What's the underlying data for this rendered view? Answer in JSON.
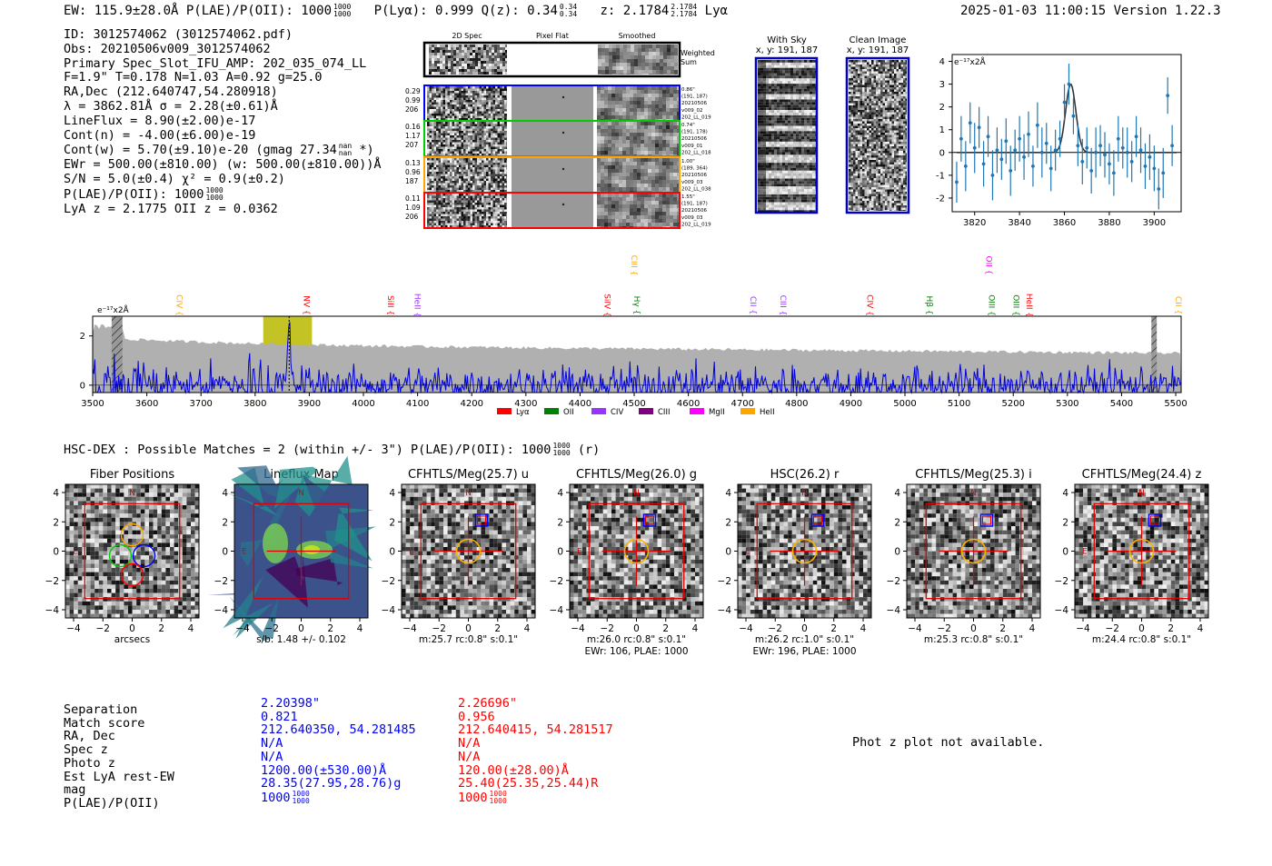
{
  "header": {
    "line": "EW: 115.9±28.0Å  P(LAE)/P(OII): 1000",
    "plae_frac": [
      "1000",
      "1000"
    ],
    "plya": "P(Lyα): 0.999  Q(z): 0.34",
    "qz_frac": [
      "0.34",
      "0.34"
    ],
    "z": "z: 2.1784",
    "z_frac": [
      "2.1784",
      "2.1784"
    ],
    "z_suffix": "Lyα",
    "timestamp": "2025-01-03 11:00:15  Version 1.22.3"
  },
  "info": {
    "id": "ID: 3012574062 (3012574062.pdf)",
    "obs": "Obs: 20210506v009_3012574062",
    "primary": "Primary Spec_Slot_IFU_AMP: 202_035_074_LL",
    "fiber": "F=1.9\"  T=0.178  N=1.03  A=0.92  g=25.0",
    "radec": "RA,Dec (212.640747,54.280918)",
    "lambda": "λ = 3862.81Å  σ = 2.28(±0.61)Å",
    "lineflux": "LineFlux = 8.90(±2.00)e-17",
    "contn": "Cont(n) = -4.00(±6.00)e-19",
    "contw": "Cont(w) = 5.70(±9.10)e-20 (gmag 27.34",
    "contw_frac": [
      "nan",
      "nan"
    ],
    "contw_suffix": "*)",
    "ewr": "EWr = 500.00(±810.00) (w: 500.00(±810.00))Å",
    "sn": "S/N = 5.0(±0.4)  χ² = 0.9(±0.2)",
    "plae": "P(LAE)/P(OII): 1000",
    "plae_frac": [
      "1000",
      "1000"
    ],
    "lyaz": "LyA z = 2.1775  OII z = 0.0362"
  },
  "stamps": {
    "col_headers": [
      "2D Spec",
      "Pixel Flat",
      "Smoothed"
    ],
    "weighted_label": "Weighted Sum",
    "rows": [
      {
        "left": [
          "0.29",
          "0.99",
          "206"
        ],
        "right": [
          "0.86\"",
          "(191, 187)",
          "20210506",
          "v009_02",
          "202_LL_019"
        ],
        "color": "#0000ff"
      },
      {
        "left": [
          "0.16",
          "1.17",
          "207"
        ],
        "right": [
          "0.74\"",
          "(191, 178)",
          "20210506",
          "v009_01",
          "202_LL_018"
        ],
        "color": "#00cc00"
      },
      {
        "left": [
          "0.13",
          "0.96",
          "187"
        ],
        "right": [
          "1.00\"",
          "(189, 364)",
          "20210506",
          "v009_03",
          "202_LL_038"
        ],
        "color": "#ffa500"
      },
      {
        "left": [
          "0.11",
          "1.09",
          "206"
        ],
        "right": [
          "1.55\"",
          "(191, 187)",
          "20210506",
          "v009_03",
          "202_LL_019"
        ],
        "color": "#ff0000"
      }
    ],
    "with_sky": [
      "With Sky",
      "x, y: 191, 187"
    ],
    "clean": [
      "Clean Image",
      "x, y: 191, 187"
    ]
  },
  "line_legend": [
    {
      "label": "Lyα",
      "color": "#ff0000"
    },
    {
      "label": "OII",
      "color": "#008000"
    },
    {
      "label": "CIV",
      "color": "#9933ff"
    },
    {
      "label": "CIII",
      "color": "#800080"
    },
    {
      "label": "MgII",
      "color": "#ff00ff"
    },
    {
      "label": "HeII",
      "color": "#ffa500"
    }
  ],
  "line_markers": [
    {
      "label": "CIV",
      "x": 3650,
      "color": "#ffa500",
      "row": 0
    },
    {
      "label": "NV",
      "x": 3885,
      "color": "#ff0000",
      "row": 0
    },
    {
      "label": "SiII",
      "x": 4040,
      "color": "#ff0000",
      "row": 0
    },
    {
      "label": "HeII",
      "x": 4090,
      "color": "#9933ff",
      "row": 0
    },
    {
      "label": "CIII",
      "x": 4490,
      "color": "#ffa500",
      "row": 1
    },
    {
      "label": "SiIV",
      "x": 4440,
      "color": "#ff0000",
      "row": 0
    },
    {
      "label": "Hγ",
      "x": 4495,
      "color": "#008000",
      "row": 0
    },
    {
      "label": "CII",
      "x": 4710,
      "color": "#9933ff",
      "row": 0
    },
    {
      "label": "CIII",
      "x": 4765,
      "color": "#9933ff",
      "row": 0
    },
    {
      "label": "CIV",
      "x": 4925,
      "color": "#ff0000",
      "row": 0
    },
    {
      "label": "Hβ",
      "x": 5035,
      "color": "#008000",
      "row": 0
    },
    {
      "label": "OII",
      "x": 5145,
      "color": "#ff00ff",
      "row": 1
    },
    {
      "label": "OIII",
      "x": 5150,
      "color": "#008000",
      "row": 0
    },
    {
      "label": "OIII",
      "x": 5195,
      "color": "#008000",
      "row": 0
    },
    {
      "label": "HeII",
      "x": 5220,
      "color": "#ff0000",
      "row": 0
    },
    {
      "label": "CII",
      "x": 5495,
      "color": "#ffa500",
      "row": 0
    }
  ],
  "chart_data": [
    {
      "type": "scatter",
      "title": "",
      "ylabel": "e⁻¹⁷x2Å",
      "xlim": [
        3810,
        3912
      ],
      "ylim": [
        -2.6,
        4.3
      ],
      "xticks": [
        3820,
        3840,
        3860,
        3880,
        3900
      ],
      "yticks": [
        -2,
        -1,
        0,
        1,
        2,
        3,
        4
      ],
      "points": [
        {
          "x": 3812,
          "y": -1.3,
          "err": 0.9
        },
        {
          "x": 3814,
          "y": 0.6,
          "err": 1.0
        },
        {
          "x": 3816,
          "y": -0.6,
          "err": 1.1
        },
        {
          "x": 3818,
          "y": 1.3,
          "err": 0.9
        },
        {
          "x": 3820,
          "y": 0.2,
          "err": 1.1
        },
        {
          "x": 3822,
          "y": 1.1,
          "err": 0.9
        },
        {
          "x": 3824,
          "y": -0.5,
          "err": 1.0
        },
        {
          "x": 3826,
          "y": 0.7,
          "err": 0.9
        },
        {
          "x": 3828,
          "y": -1.0,
          "err": 1.1
        },
        {
          "x": 3830,
          "y": 0.1,
          "err": 1.0
        },
        {
          "x": 3832,
          "y": -0.3,
          "err": 0.9
        },
        {
          "x": 3834,
          "y": 0.5,
          "err": 1.0
        },
        {
          "x": 3836,
          "y": -0.8,
          "err": 1.1
        },
        {
          "x": 3838,
          "y": 0.1,
          "err": 0.9
        },
        {
          "x": 3840,
          "y": 0.6,
          "err": 1.0
        },
        {
          "x": 3842,
          "y": -0.2,
          "err": 1.0
        },
        {
          "x": 3844,
          "y": 0.8,
          "err": 1.0
        },
        {
          "x": 3846,
          "y": -0.6,
          "err": 0.9
        },
        {
          "x": 3848,
          "y": 1.2,
          "err": 1.0
        },
        {
          "x": 3850,
          "y": 0.0,
          "err": 1.1
        },
        {
          "x": 3852,
          "y": 0.4,
          "err": 0.9
        },
        {
          "x": 3854,
          "y": -0.7,
          "err": 1.0
        },
        {
          "x": 3856,
          "y": 0.1,
          "err": 0.9
        },
        {
          "x": 3858,
          "y": 0.6,
          "err": 0.8
        },
        {
          "x": 3860,
          "y": 2.2,
          "err": 0.8
        },
        {
          "x": 3862,
          "y": 3.0,
          "err": 0.9
        },
        {
          "x": 3864,
          "y": 1.6,
          "err": 0.8
        },
        {
          "x": 3866,
          "y": 0.3,
          "err": 0.9
        },
        {
          "x": 3868,
          "y": -0.4,
          "err": 1.0
        },
        {
          "x": 3870,
          "y": 0.2,
          "err": 0.9
        },
        {
          "x": 3872,
          "y": -0.8,
          "err": 1.0
        },
        {
          "x": 3874,
          "y": 0.0,
          "err": 1.1
        },
        {
          "x": 3876,
          "y": 0.3,
          "err": 0.9
        },
        {
          "x": 3878,
          "y": -0.1,
          "err": 1.0
        },
        {
          "x": 3880,
          "y": -0.5,
          "err": 0.9
        },
        {
          "x": 3882,
          "y": -0.9,
          "err": 1.0
        },
        {
          "x": 3884,
          "y": 0.6,
          "err": 1.0
        },
        {
          "x": 3886,
          "y": 0.2,
          "err": 0.9
        },
        {
          "x": 3888,
          "y": 0.0,
          "err": 1.1
        },
        {
          "x": 3890,
          "y": -0.4,
          "err": 0.9
        },
        {
          "x": 3892,
          "y": 0.7,
          "err": 0.9
        },
        {
          "x": 3894,
          "y": 0.1,
          "err": 1.0
        },
        {
          "x": 3896,
          "y": -0.6,
          "err": 1.0
        },
        {
          "x": 3898,
          "y": -0.2,
          "err": 1.0
        },
        {
          "x": 3900,
          "y": -0.7,
          "err": 1.0
        },
        {
          "x": 3902,
          "y": -1.6,
          "err": 0.9
        },
        {
          "x": 3904,
          "y": -0.9,
          "err": 1.1
        },
        {
          "x": 3906,
          "y": 2.5,
          "err": 0.8
        },
        {
          "x": 3908,
          "y": 0.3,
          "err": 0.9
        }
      ],
      "fit": {
        "center": 3862.81,
        "sigma": 2.28,
        "amp": 3.0,
        "cont": 0.0
      }
    },
    {
      "type": "line",
      "ylabel": "e⁻¹⁷x2Å",
      "xlim": [
        3500,
        5510
      ],
      "ylim": [
        -0.3,
        2.8
      ],
      "xticks": [
        3500,
        3600,
        3700,
        3800,
        3900,
        4000,
        4100,
        4200,
        4300,
        4400,
        4500,
        4600,
        4700,
        4800,
        4900,
        5000,
        5100,
        5200,
        5300,
        5400,
        5500
      ],
      "yticks": [
        0,
        2
      ],
      "highlight_band": [
        3815,
        3905
      ],
      "masked_regions": [
        [
          3535,
          3555
        ],
        [
          5455,
          5465
        ]
      ],
      "line_center": 3862.8,
      "noise_level": 1.0
    }
  ],
  "hsc": {
    "title": "HSC-DEX : Possible Matches = 2 (within +/- 3\")  P(LAE)/P(OII): 1000",
    "plae_frac": [
      "1000",
      "1000"
    ],
    "suffix": "(r)",
    "cutouts": [
      {
        "title": "Fiber Positions",
        "caption": [
          "arcsecs"
        ],
        "kind": "fiber"
      },
      {
        "title": "Lineflux Map",
        "caption": [
          "s/b: 1.48 +/- 0.102"
        ],
        "kind": "lineflux"
      },
      {
        "title": "CFHTLS/Meg(25.7) u",
        "caption": [
          "m:25.7 rc:0.8\"  s:0.1\""
        ],
        "kind": "image"
      },
      {
        "title": "CFHTLS/Meg(26.0) g",
        "caption": [
          "m:26.0 rc:0.8\"  s:0.1\"",
          "EWr: 106, PLAE: 1000"
        ],
        "kind": "image"
      },
      {
        "title": "HSC(26.2) r",
        "caption": [
          "m:26.2 rc:1.0\"  s:0.1\"",
          "EWr: 196, PLAE: 1000"
        ],
        "kind": "image"
      },
      {
        "title": "CFHTLS/Meg(25.3) i",
        "caption": [
          "m:25.3 rc:0.8\"  s:0.1\""
        ],
        "kind": "image"
      },
      {
        "title": "CFHTLS/Meg(24.4) z",
        "caption": [
          "m:24.4 rc:0.8\"  s:0.1\""
        ],
        "kind": "image"
      }
    ],
    "axis_ticks": [
      "4",
      "2",
      "0",
      "−2",
      "−4"
    ],
    "x_ticks": [
      "−4",
      "−2",
      "0",
      "2",
      "4"
    ],
    "north": "N",
    "east": "E"
  },
  "matches": {
    "labels": [
      "Separation",
      "Match score",
      "RA, Dec",
      "Spec z",
      "Photo z",
      "Est LyA rest-EW",
      "mag",
      "P(LAE)/P(OII)"
    ],
    "blue": [
      "2.20398\"",
      "0.821",
      "212.640350, 54.281485",
      "N/A",
      "N/A",
      "1200.00(±530.00)Å",
      "28.35(27.95,28.76)g",
      "1000"
    ],
    "red": [
      "2.26696\"",
      "0.956",
      "212.640415, 54.281517",
      "N/A",
      "N/A",
      "120.00(±28.00)Å",
      "25.40(25.35,25.44)R",
      "1000"
    ],
    "plae_frac": [
      "1000",
      "1000"
    ],
    "photz_message": "Phot z plot not available."
  }
}
